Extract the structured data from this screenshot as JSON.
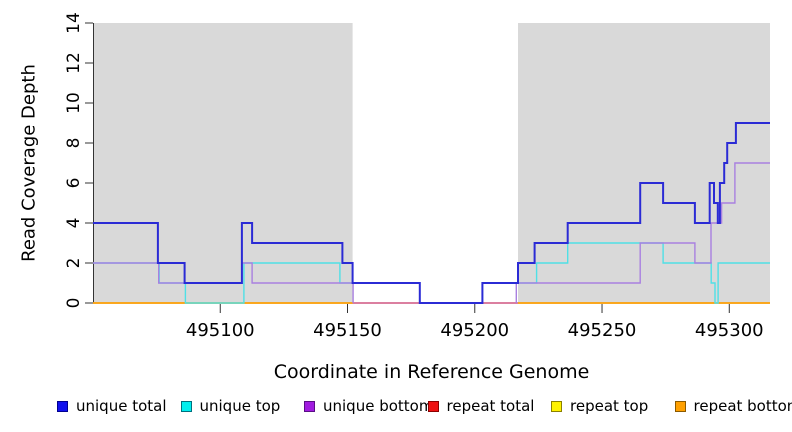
{
  "chart_data": {
    "type": "line",
    "subtype": "step",
    "title": "",
    "xlabel": "Coordinate in Reference Genome",
    "ylabel": "Read Coverage Depth",
    "xlim": [
      495050,
      495316
    ],
    "ylim": [
      0,
      14
    ],
    "x_ticks": [
      495100,
      495150,
      495200,
      495250,
      495300
    ],
    "y_ticks": [
      0,
      2,
      4,
      6,
      8,
      10,
      12,
      14
    ],
    "grid": false,
    "legend_position": "bottom",
    "shaded_regions": {
      "color": "#D9D9D9",
      "ranges": [
        [
          495050,
          495152
        ],
        [
          495217,
          495316
        ]
      ]
    },
    "series": [
      {
        "name": "unique total",
        "key": "unique_total",
        "line_color": "#2B2BD5",
        "line_width": 2,
        "paths": [
          [
            [
              495050,
              4
            ],
            [
              495075.5,
              2
            ],
            [
              495086,
              1
            ],
            [
              495108.5,
              4
            ],
            [
              495112.5,
              3
            ],
            [
              495148,
              2
            ],
            [
              495152,
              1
            ],
            [
              495178.4,
              0
            ],
            [
              495203,
              1
            ],
            [
              495217,
              2
            ],
            [
              495223.5,
              3
            ],
            [
              495236.5,
              4
            ],
            [
              495265,
              6
            ],
            [
              495274,
              5
            ],
            [
              495286.5,
              4
            ],
            [
              495292.3,
              6
            ],
            [
              495294,
              5
            ],
            [
              495295.5,
              4
            ],
            [
              495296.3,
              6
            ],
            [
              495298,
              7
            ],
            [
              495299.2,
              8
            ],
            [
              495302.6,
              9
            ],
            [
              495316,
              9
            ]
          ]
        ]
      },
      {
        "name": "unique top",
        "key": "unique_top",
        "line_color": "#4FE0E6",
        "line_width": 1.4,
        "paths": [
          [
            [
              495050,
              2
            ],
            [
              495076,
              1
            ],
            [
              495086.3,
              0
            ],
            [
              495109.3,
              2
            ],
            [
              495147,
              1
            ],
            [
              495178.4,
              0
            ],
            [
              495203,
              1
            ],
            [
              495224.3,
              2
            ],
            [
              495236.5,
              3
            ],
            [
              495274,
              2
            ],
            [
              495292.9,
              1
            ],
            [
              495294.4,
              0
            ],
            [
              495295.6,
              2
            ],
            [
              495316,
              2
            ]
          ]
        ]
      },
      {
        "name": "unique bottom",
        "key": "unique_bottom",
        "line_color": "#A980E0",
        "line_width": 1.4,
        "paths": [
          [
            [
              495050,
              2
            ],
            [
              495075.8,
              1
            ],
            [
              495108.5,
              2
            ],
            [
              495112.5,
              1
            ],
            [
              495152.2,
              0
            ]
          ],
          [
            [
              495216.3,
              0
            ],
            [
              495216.3,
              1
            ],
            [
              495265,
              3
            ],
            [
              495286.5,
              2
            ],
            [
              495292.8,
              4
            ],
            [
              495297,
              5
            ],
            [
              495302.2,
              7
            ],
            [
              495316,
              7
            ]
          ]
        ]
      },
      {
        "name": "repeat total",
        "key": "repeat_total",
        "line_color": "#CF5581",
        "line_width": 1.4,
        "paths": [
          [
            [
              495050,
              0
            ],
            [
              495316,
              0
            ]
          ]
        ]
      },
      {
        "name": "repeat top",
        "key": "repeat_top",
        "line_color": "#F5E642",
        "line_width": 1.4,
        "paths": [
          [
            [
              495050,
              0
            ],
            [
              495152,
              0
            ]
          ],
          [
            [
              495217,
              0
            ],
            [
              495316,
              0
            ]
          ]
        ]
      },
      {
        "name": "repeat bottom",
        "key": "repeat_bottom",
        "line_color": "#FF9D00",
        "line_width": 1.6,
        "paths": [
          [
            [
              495050,
              0
            ],
            [
              495152,
              0
            ]
          ],
          [
            [
              495217,
              0
            ],
            [
              495316,
              0
            ]
          ]
        ]
      }
    ]
  },
  "legend": {
    "items": [
      {
        "key": "unique_total",
        "label": "unique total",
        "swatch_color": "#1111EE",
        "swatch_border": "#000090"
      },
      {
        "key": "unique_top",
        "label": "unique top",
        "swatch_color": "#00EEEE",
        "swatch_border": "#00707E"
      },
      {
        "key": "unique_bottom",
        "label": "unique bottom",
        "swatch_color": "#A11BE0",
        "swatch_border": "#5A0E86"
      },
      {
        "key": "repeat_total",
        "label": "repeat total",
        "swatch_color": "#EE1111",
        "swatch_border": "#8B0000"
      },
      {
        "key": "repeat_top",
        "label": "repeat top",
        "swatch_color": "#FFF200",
        "swatch_border": "#8B8000"
      },
      {
        "key": "repeat_bottom",
        "label": "repeat bottom",
        "swatch_color": "#FFA000",
        "swatch_border": "#8B5A00"
      }
    ]
  }
}
